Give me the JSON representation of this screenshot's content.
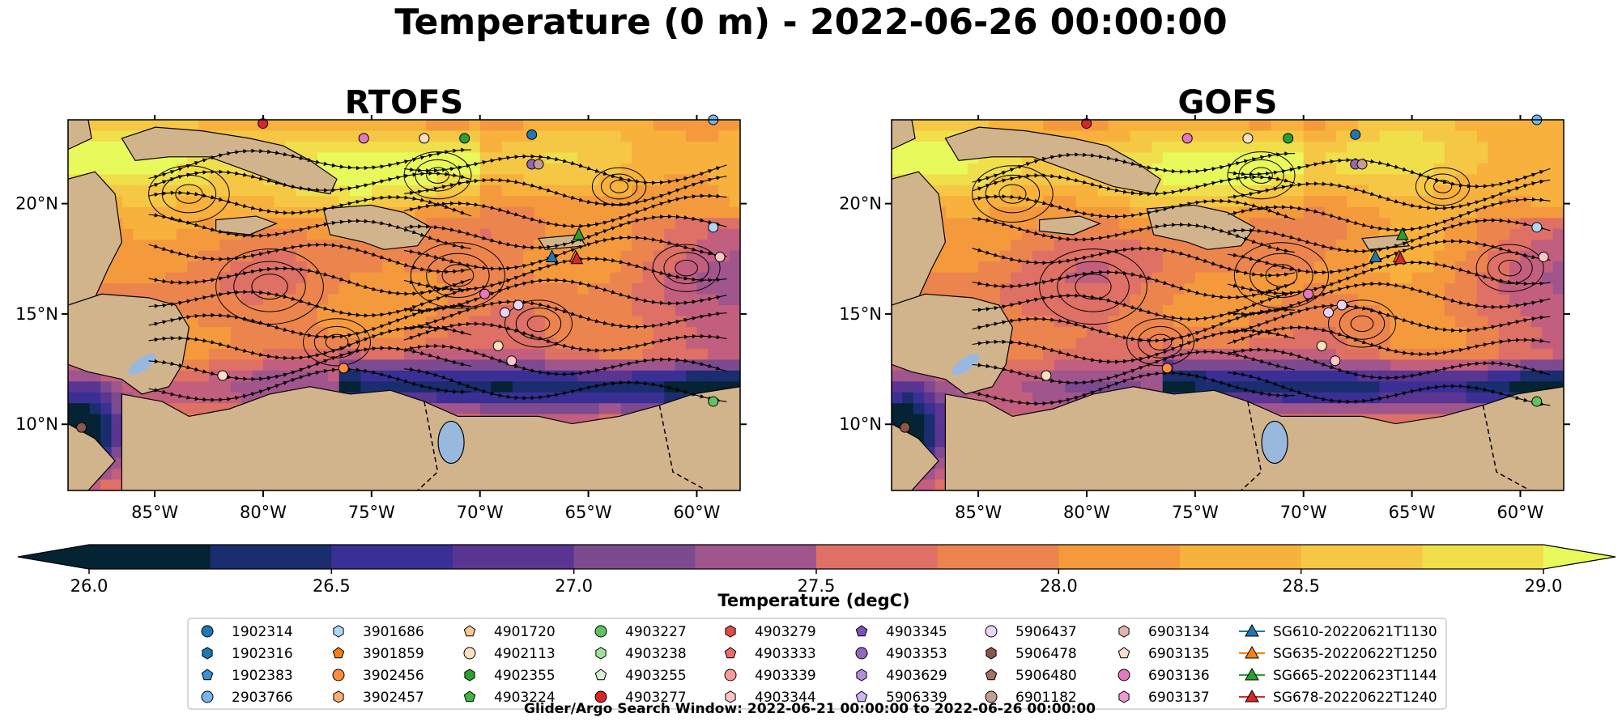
{
  "figure": {
    "title": "Temperature (0 m) - 2022-06-26 00:00:00",
    "footnote": "Glider/Argo Search Window: 2022-06-21 00:00:00 to 2022-06-26 00:00:00"
  },
  "colors": {
    "land": "#d2b48c",
    "lake": "#99b8de",
    "cmap": [
      "#042333",
      "#1a2d6e",
      "#3a2f94",
      "#5a3591",
      "#7d4a8f",
      "#a0558d",
      "#c35f7e",
      "#de7065",
      "#ec844e",
      "#f49a3d",
      "#f7b13c",
      "#f5c744",
      "#f0de4a",
      "#e8fa5b"
    ]
  },
  "chart_data": [
    {
      "type": "heatmap",
      "title": "RTOFS",
      "xticks": [
        "85°W",
        "80°W",
        "75°W",
        "70°W",
        "65°W",
        "60°W"
      ],
      "xtick_values": [
        -85,
        -80,
        -75,
        -70,
        -65,
        -60
      ],
      "yticks": [
        "20°N",
        "15°N",
        "10°N"
      ],
      "ytick_values": [
        20,
        15,
        10
      ],
      "xlim": [
        -89,
        -58
      ],
      "ylim": [
        7,
        23.8
      ],
      "variable": "Temperature (0 m)",
      "grid": false
    },
    {
      "type": "heatmap",
      "title": "GOFS",
      "xticks": [
        "85°W",
        "80°W",
        "75°W",
        "70°W",
        "65°W",
        "60°W"
      ],
      "xtick_values": [
        -85,
        -80,
        -75,
        -70,
        -65,
        -60
      ],
      "yticks": [
        "20°N",
        "15°N",
        "10°N"
      ],
      "ytick_values": [
        20,
        15,
        10
      ],
      "xlim": [
        -89,
        -58
      ],
      "ylim": [
        7,
        23.8
      ],
      "variable": "Temperature (0 m)",
      "grid": false
    }
  ],
  "colorbar": {
    "label": "Temperature (degC)",
    "ticks": [
      "26.0",
      "26.5",
      "27.0",
      "27.5",
      "28.0",
      "28.5",
      "29.0"
    ],
    "tick_values": [
      26.0,
      26.5,
      27.0,
      27.5,
      28.0,
      28.5,
      29.0
    ],
    "vmin": 26.0,
    "vmax": 29.0,
    "step": 0.25,
    "extend": "both"
  },
  "legend": {
    "columns": [
      [
        {
          "label": "1902314",
          "marker": "circle",
          "color": "#1f77b4"
        },
        {
          "label": "1902316",
          "marker": "hexagon",
          "color": "#1f77b4"
        },
        {
          "label": "1902383",
          "marker": "pentagon",
          "color": "#3a8fd6"
        },
        {
          "label": "2903766",
          "marker": "circle",
          "color": "#77b5ea"
        }
      ],
      [
        {
          "label": "3901686",
          "marker": "hexagon",
          "color": "#aed6f5"
        },
        {
          "label": "3901859",
          "marker": "pentagon",
          "color": "#f57f10"
        },
        {
          "label": "3902456",
          "marker": "circle",
          "color": "#fd8d3c"
        },
        {
          "label": "3902457",
          "marker": "hexagon",
          "color": "#fdae6b"
        }
      ],
      [
        {
          "label": "4901720",
          "marker": "pentagon",
          "color": "#fdc891"
        },
        {
          "label": "4902113",
          "marker": "circle",
          "color": "#fde0c3"
        },
        {
          "label": "4902355",
          "marker": "hexagon",
          "color": "#2ca02c"
        },
        {
          "label": "4903224",
          "marker": "pentagon",
          "color": "#40b640"
        }
      ],
      [
        {
          "label": "4903227",
          "marker": "circle",
          "color": "#5ec45e"
        },
        {
          "label": "4903238",
          "marker": "hexagon",
          "color": "#a1e29a"
        },
        {
          "label": "4903255",
          "marker": "pentagon",
          "color": "#d6f5cf"
        },
        {
          "label": "4903277",
          "marker": "circle",
          "color": "#d62728"
        }
      ],
      [
        {
          "label": "4903279",
          "marker": "hexagon",
          "color": "#e34a4b"
        },
        {
          "label": "4903333",
          "marker": "pentagon",
          "color": "#ee6b6c"
        },
        {
          "label": "4903339",
          "marker": "circle",
          "color": "#f79b9b"
        },
        {
          "label": "4903344",
          "marker": "hexagon",
          "color": "#fbc6c4"
        }
      ],
      [
        {
          "label": "4903345",
          "marker": "pentagon",
          "color": "#7f4ec0"
        },
        {
          "label": "4903353",
          "marker": "circle",
          "color": "#9467bd"
        },
        {
          "label": "4903629",
          "marker": "hexagon",
          "color": "#b28fdc"
        },
        {
          "label": "5906339",
          "marker": "pentagon",
          "color": "#cdb7ee"
        }
      ],
      [
        {
          "label": "5906437",
          "marker": "circle",
          "color": "#e7d4f7"
        },
        {
          "label": "5906478",
          "marker": "hexagon",
          "color": "#8c564b"
        },
        {
          "label": "5906480",
          "marker": "pentagon",
          "color": "#a86f63"
        },
        {
          "label": "6901182",
          "marker": "circle",
          "color": "#c49c94"
        }
      ],
      [
        {
          "label": "6903134",
          "marker": "hexagon",
          "color": "#e2b6aa"
        },
        {
          "label": "6903135",
          "marker": "pentagon",
          "color": "#f7dccf"
        },
        {
          "label": "6903136",
          "marker": "circle",
          "color": "#e377c2"
        },
        {
          "label": "6903137",
          "marker": "hexagon",
          "color": "#ef9ad6"
        }
      ],
      [
        {
          "label": "SG610-20220621T1130",
          "marker": "triangle-line",
          "color": "#1f77b4"
        },
        {
          "label": "SG635-20220622T1250",
          "marker": "triangle-line",
          "color": "#ff7f0e"
        },
        {
          "label": "SG665-20220623T1144",
          "marker": "triangle-line",
          "color": "#2ca02c"
        },
        {
          "label": "SG678-20220622T1240",
          "marker": "triangle-line",
          "color": "#d62728"
        }
      ]
    ]
  }
}
